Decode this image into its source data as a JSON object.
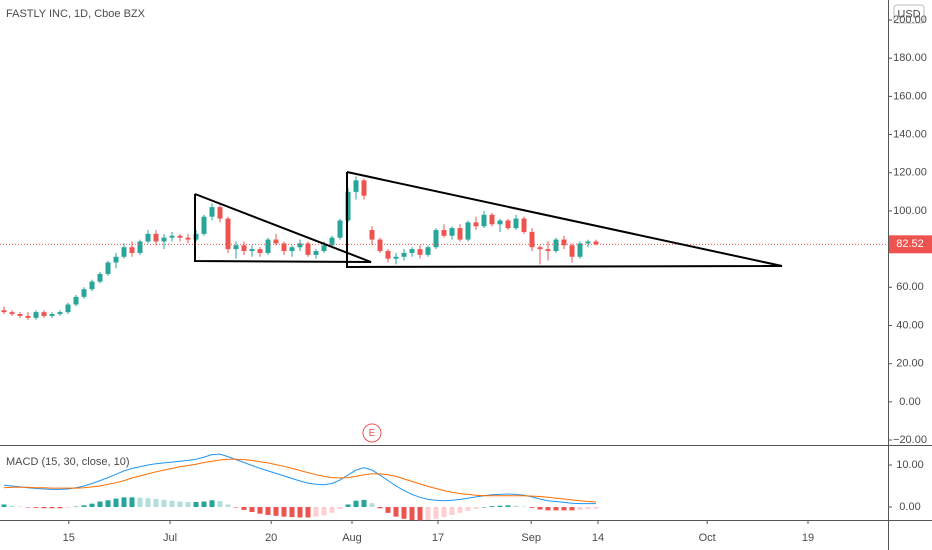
{
  "chart_data": [
    {
      "type": "candlestick",
      "title": "FASTLY INC, 1D, Cboe BZX",
      "currency": "USD",
      "open": [
        48,
        47,
        46,
        45,
        44,
        47,
        45,
        46,
        47,
        51,
        55,
        59,
        63,
        67,
        73,
        76,
        81,
        78,
        84,
        88,
        84,
        86,
        87,
        86,
        85,
        88,
        97,
        102,
        96,
        80,
        82,
        79,
        80,
        78,
        85,
        83,
        79,
        81,
        83,
        77,
        79,
        82,
        86,
        95,
        110,
        116,
        90,
        85,
        79,
        75,
        76,
        78,
        80,
        77,
        81,
        90,
        87,
        91,
        85,
        94,
        92,
        98,
        93,
        95,
        91,
        96,
        89,
        81,
        80,
        79,
        85,
        82,
        76,
        83,
        84
      ],
      "high": [
        50,
        48,
        47,
        47,
        48,
        48,
        47,
        48,
        52,
        56,
        60,
        64,
        68,
        74,
        78,
        83,
        84,
        85,
        90,
        90,
        88,
        89,
        88,
        88,
        90,
        98,
        104,
        103,
        97,
        84,
        84,
        82,
        81,
        86,
        88,
        84,
        82,
        85,
        84,
        80,
        84,
        87,
        96,
        112,
        118,
        117,
        92,
        86,
        80,
        78,
        80,
        81,
        82,
        82,
        91,
        93,
        92,
        93,
        95,
        97,
        100,
        99,
        96,
        96,
        98,
        97,
        91,
        82,
        84,
        86,
        87,
        83,
        84,
        85,
        85
      ],
      "low": [
        46,
        45,
        44,
        43,
        43,
        44,
        44,
        45,
        46,
        50,
        54,
        58,
        62,
        66,
        70,
        75,
        76,
        77,
        83,
        82,
        80,
        84,
        84,
        83,
        84,
        87,
        95,
        94,
        78,
        75,
        77,
        76,
        76,
        77,
        82,
        77,
        76,
        79,
        76,
        75,
        78,
        81,
        85,
        94,
        106,
        106,
        82,
        78,
        73,
        72,
        74,
        76,
        75,
        76,
        80,
        86,
        85,
        84,
        84,
        90,
        91,
        92,
        89,
        90,
        90,
        88,
        79,
        72,
        74,
        78,
        80,
        73,
        75,
        81,
        82
      ],
      "close": [
        47,
        46,
        45,
        44,
        47,
        45,
        46,
        47,
        51,
        55,
        59,
        63,
        67,
        73,
        76,
        81,
        78,
        84,
        88,
        84,
        86,
        87,
        86,
        85,
        88,
        97,
        102,
        96,
        80,
        82,
        79,
        80,
        78,
        85,
        83,
        79,
        81,
        83,
        77,
        79,
        82,
        86,
        95,
        110,
        116,
        108,
        85,
        79,
        75,
        76,
        78,
        80,
        77,
        81,
        90,
        87,
        91,
        85,
        94,
        92,
        98,
        93,
        95,
        91,
        96,
        89,
        81,
        80,
        79,
        85,
        82,
        76,
        83,
        84,
        82.52
      ],
      "last_price": 82.52,
      "up_color": "#26a69a",
      "down_color": "#ef5350",
      "ylim": [
        -22.6,
        210.5
      ],
      "yticks": [
        {
          "value": -20,
          "label": "−20.00"
        },
        {
          "value": 0,
          "label": "0.00"
        },
        {
          "value": 20,
          "label": "20.00"
        },
        {
          "value": 40,
          "label": "40.00"
        },
        {
          "value": 60,
          "label": "60.00"
        },
        {
          "value": 80,
          "label": "80.00"
        },
        {
          "value": 100,
          "label": "100.00"
        },
        {
          "value": 120,
          "label": "120.00"
        },
        {
          "value": 140,
          "label": "140.00"
        },
        {
          "value": 160,
          "label": "160.00"
        },
        {
          "value": 180,
          "label": "180.00"
        },
        {
          "value": 200,
          "label": "200.00"
        }
      ],
      "xlim": [
        -0.5,
        110.5
      ],
      "xticks": [
        {
          "value": 8.1,
          "label": "15"
        },
        {
          "value": 20.75,
          "label": "Jul"
        },
        {
          "value": 33.4,
          "label": "20"
        },
        {
          "value": 43.5,
          "label": "Aug"
        },
        {
          "value": 54.25,
          "label": "17"
        },
        {
          "value": 65.9,
          "label": "Sep"
        },
        {
          "value": 74.25,
          "label": "14"
        },
        {
          "value": 87.9,
          "label": "Oct"
        },
        {
          "value": 100.5,
          "label": "19"
        }
      ],
      "event_marker": {
        "label": "E",
        "x": 46
      }
    },
    {
      "type": "macd",
      "title": "MACD (15, 30, close, 10)",
      "macd": [
        5.2,
        5.0,
        4.8,
        4.6,
        4.4,
        4.3,
        4.2,
        4.2,
        4.3,
        4.6,
        5.0,
        5.6,
        6.3,
        7.0,
        7.8,
        8.6,
        9.2,
        9.6,
        10.0,
        10.3,
        10.5,
        10.7,
        10.9,
        11.1,
        11.4,
        11.9,
        12.5,
        12.6,
        12.0,
        11.3,
        10.6,
        9.9,
        9.2,
        8.6,
        8.0,
        7.4,
        6.8,
        6.2,
        5.7,
        5.4,
        5.3,
        5.6,
        6.4,
        7.6,
        8.8,
        9.4,
        8.8,
        7.6,
        6.3,
        5.0,
        3.9,
        3.0,
        2.3,
        1.8,
        1.6,
        1.5,
        1.6,
        1.8,
        2.1,
        2.4,
        2.7,
        2.9,
        3.0,
        3.1,
        3.0,
        2.8,
        2.4,
        1.9,
        1.5,
        1.3,
        1.1,
        0.9,
        0.8,
        0.8,
        0.8
      ],
      "signal": [
        4.6,
        4.7,
        4.7,
        4.7,
        4.6,
        4.6,
        4.5,
        4.5,
        4.5,
        4.5,
        4.6,
        4.8,
        5.0,
        5.4,
        5.8,
        6.3,
        6.9,
        7.4,
        7.9,
        8.4,
        8.8,
        9.2,
        9.6,
        9.9,
        10.2,
        10.6,
        10.9,
        11.2,
        11.4,
        11.4,
        11.3,
        11.1,
        10.8,
        10.5,
        10.1,
        9.7,
        9.2,
        8.7,
        8.2,
        7.7,
        7.3,
        7.0,
        6.9,
        7.0,
        7.3,
        7.7,
        7.9,
        7.9,
        7.7,
        7.3,
        6.7,
        6.1,
        5.5,
        4.9,
        4.4,
        3.9,
        3.5,
        3.2,
        3.0,
        2.8,
        2.7,
        2.7,
        2.7,
        2.7,
        2.7,
        2.7,
        2.6,
        2.5,
        2.3,
        2.1,
        1.9,
        1.7,
        1.5,
        1.3,
        1.2
      ],
      "histogram": [
        0.6,
        0.3,
        0.1,
        -0.1,
        -0.2,
        -0.3,
        -0.3,
        -0.3,
        -0.2,
        0.1,
        0.4,
        0.8,
        1.3,
        1.6,
        2.0,
        2.3,
        2.3,
        2.2,
        2.1,
        1.9,
        1.7,
        1.5,
        1.3,
        1.2,
        1.2,
        1.3,
        1.6,
        1.4,
        0.6,
        -0.1,
        -0.7,
        -1.2,
        -1.6,
        -1.9,
        -2.1,
        -2.3,
        -2.4,
        -2.5,
        -2.5,
        -2.3,
        -2.0,
        -1.4,
        -0.5,
        0.6,
        1.5,
        1.7,
        0.9,
        -0.3,
        -1.4,
        -2.3,
        -2.8,
        -3.1,
        -3.2,
        -3.1,
        -2.8,
        -2.4,
        -1.9,
        -1.4,
        -0.9,
        -0.4,
        0.0,
        0.2,
        0.3,
        0.4,
        0.3,
        0.1,
        -0.2,
        -0.6,
        -0.8,
        -0.8,
        -0.8,
        -0.8,
        -0.7,
        -0.5,
        -0.4
      ],
      "macd_color": "#2196f3",
      "signal_color": "#ff6d00",
      "hist_colors": [
        "#26a69a",
        "#b2dfdb",
        "#ef5350",
        "#ffcdd2"
      ],
      "ylim": [
        -3.1,
        14.3
      ],
      "yticks": [
        {
          "value": 0,
          "label": "0.00"
        },
        {
          "value": 10,
          "label": "10.00"
        }
      ]
    }
  ]
}
